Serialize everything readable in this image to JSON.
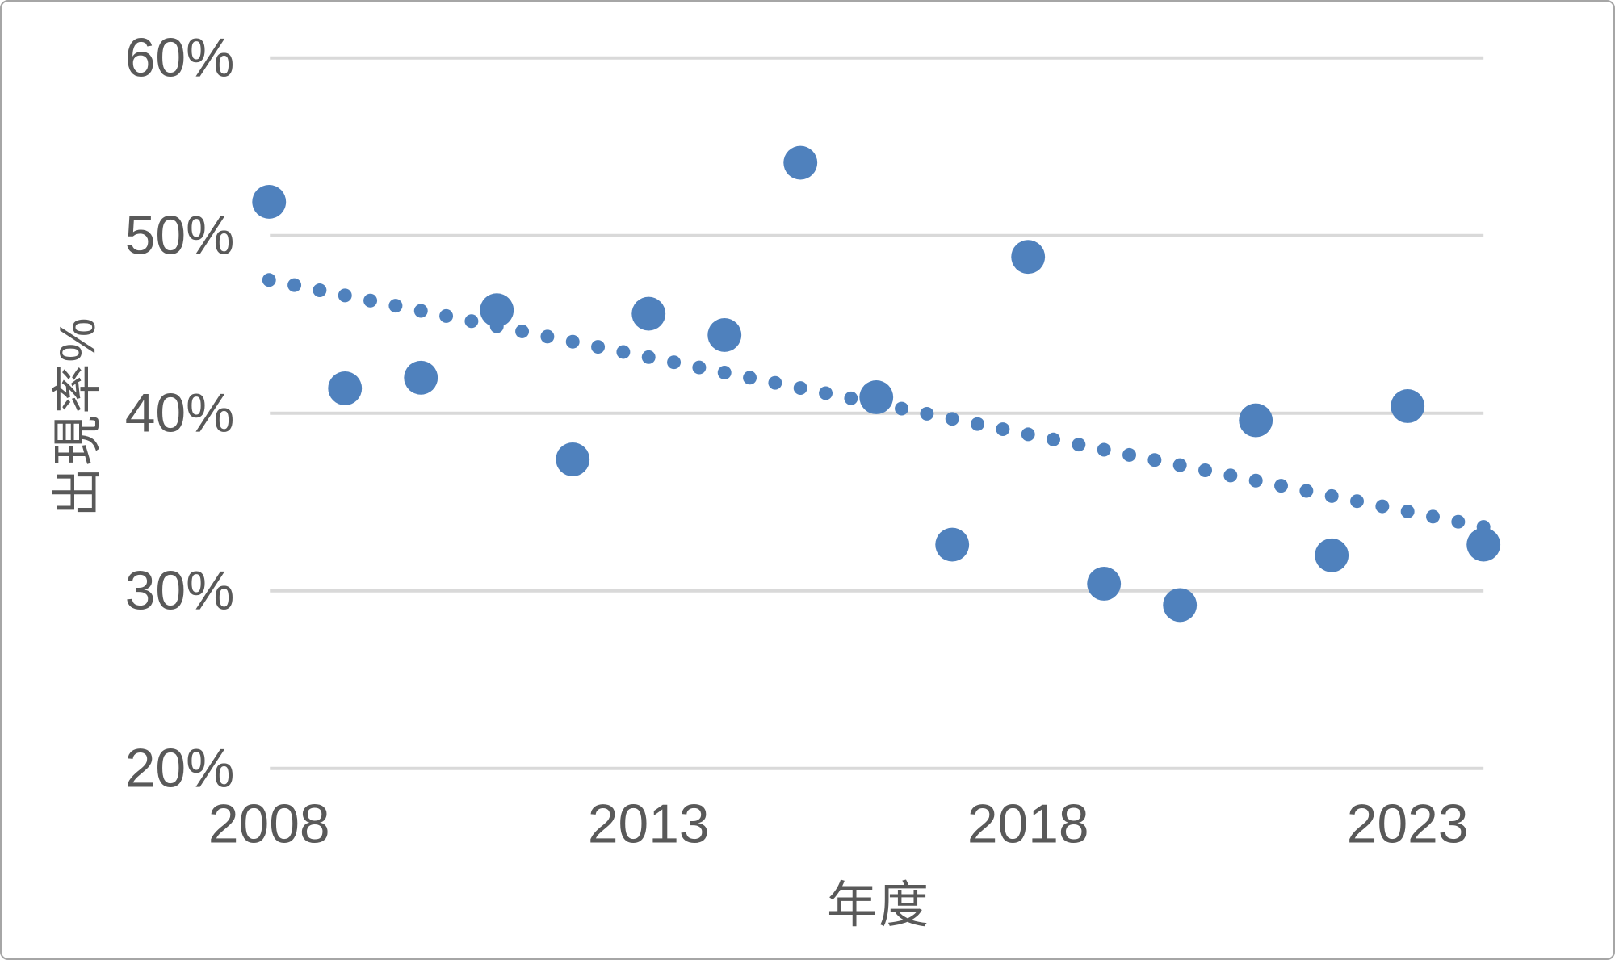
{
  "window": {
    "background": "#ffffff",
    "border_color": "#a6a6a6"
  },
  "chart_data": {
    "type": "scatter",
    "title": "",
    "xlabel": "年度",
    "ylabel": "出現率%",
    "x_ticks": [
      2008,
      2013,
      2018,
      2023
    ],
    "y_ticks": [
      60,
      50,
      40,
      30,
      20
    ],
    "y_tick_suffix": "%",
    "xlim": [
      2008,
      2024
    ],
    "ylim": [
      20,
      60
    ],
    "grid": "horizontal-only",
    "legend": "none",
    "series": [
      {
        "name": "出現率",
        "type": "points",
        "x": [
          2008,
          2009,
          2010,
          2011,
          2012,
          2013,
          2014,
          2015,
          2016,
          2017,
          2018,
          2019,
          2020,
          2021,
          2022,
          2023,
          2024
        ],
        "y": [
          51.9,
          41.4,
          42.0,
          45.8,
          37.4,
          45.6,
          44.4,
          54.1,
          40.9,
          32.6,
          48.8,
          30.4,
          29.2,
          39.6,
          32.0,
          40.4,
          32.6
        ]
      },
      {
        "name": "trendline",
        "type": "dotted_trendline",
        "x": [
          2008,
          2024
        ],
        "y": [
          47.5,
          33.6
        ]
      }
    ],
    "colors": {
      "marker": "#4f81bd",
      "trend": "#4f81bd",
      "gridline": "#d9d9d9",
      "axis_text": "#595959"
    }
  }
}
